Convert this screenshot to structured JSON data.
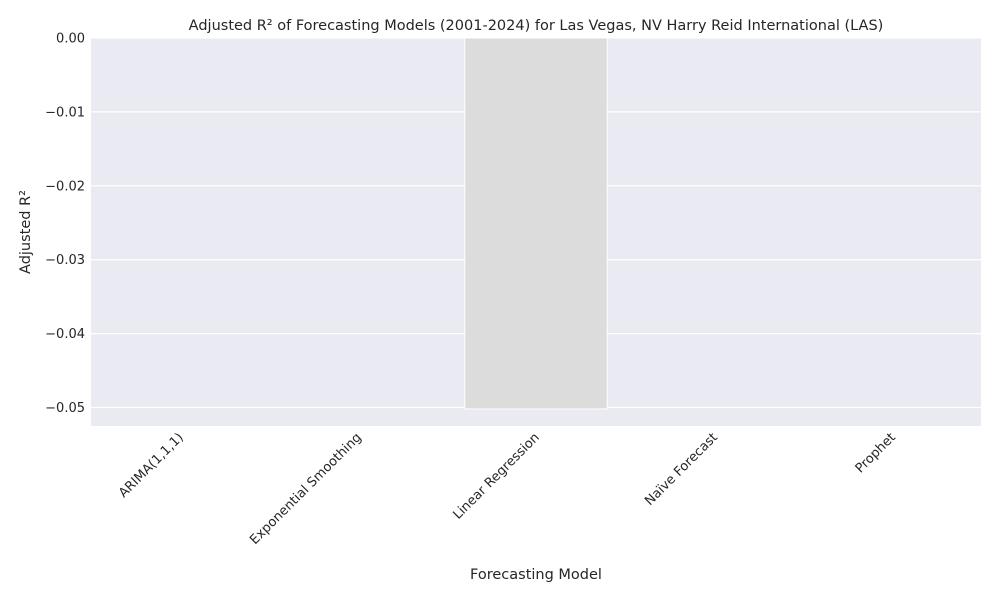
{
  "chart_data": {
    "type": "bar",
    "title": "Adjusted R² of Forecasting Models (2001-2024) for Las Vegas, NV Harry Reid International (LAS)",
    "xlabel": "Forecasting Model",
    "ylabel": "Adjusted R²",
    "categories": [
      "ARIMA(1,1,1)",
      "Exponential Smoothing",
      "Linear Regression",
      "Naïve Forecast",
      "Prophet"
    ],
    "values": [
      0,
      0,
      -0.0502,
      0,
      0
    ],
    "ylim": [
      -0.0525,
      0.0
    ],
    "yticks": [
      0.0,
      -0.01,
      -0.02,
      -0.03,
      -0.04,
      -0.05
    ],
    "ytick_labels": [
      "0.00",
      "−0.01",
      "−0.02",
      "−0.03",
      "−0.04",
      "−0.05"
    ],
    "grid": true,
    "bar_color": "#dcdcdc",
    "plot_background": "#eaeaf2",
    "grid_color": "#ffffff"
  }
}
